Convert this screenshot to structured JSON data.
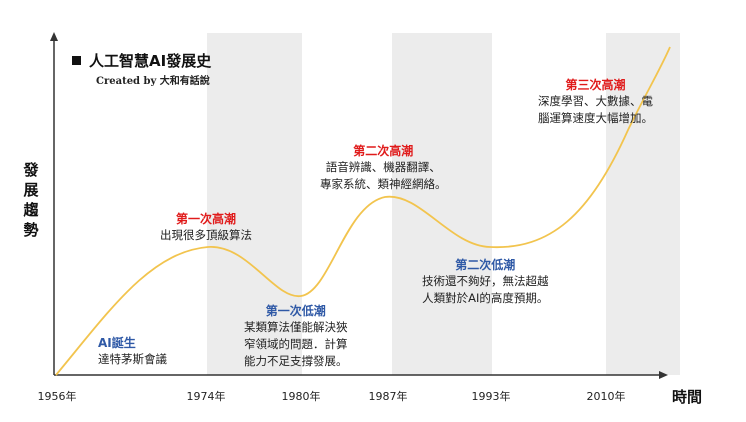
{
  "title": "人工智慧AI發展史",
  "credit": "Created by 大和有話說",
  "y_axis_label": "發展趨勢",
  "x_axis_label": "時間",
  "x_ticks": [
    "1956年",
    "1974年",
    "1980年",
    "1987年",
    "1993年",
    "2010年"
  ],
  "events": [
    {
      "title": "AI誕生",
      "desc": [
        "達特茅斯會議"
      ],
      "color": "#2f59a6"
    },
    {
      "title": "第一次高潮",
      "desc": [
        "出現很多頂級算法"
      ],
      "color": "#e01b1b"
    },
    {
      "title": "第一次低潮",
      "desc": [
        "某類算法僅能解決狹",
        "窄領域的問題．計算",
        "能力不足支撐發展。"
      ],
      "color": "#2f59a6"
    },
    {
      "title": "第二次高潮",
      "desc": [
        "語音辨識、機器翻譯、",
        "專家系統、類神經網絡。"
      ],
      "color": "#e01b1b"
    },
    {
      "title": "第二次低潮",
      "desc": [
        "技術還不夠好，無法超越",
        "人類對於AI的高度預期。"
      ],
      "color": "#2f59a6"
    },
    {
      "title": "第三次高潮",
      "desc": [
        "深度學習、大數據、電",
        "腦運算速度大幅增加。"
      ],
      "color": "#e01b1b"
    }
  ],
  "colors": {
    "curve": "#f2c44e",
    "band": "#ececec",
    "axis": "#333333",
    "red": "#e01b1b",
    "blue": "#2f59a6"
  }
}
